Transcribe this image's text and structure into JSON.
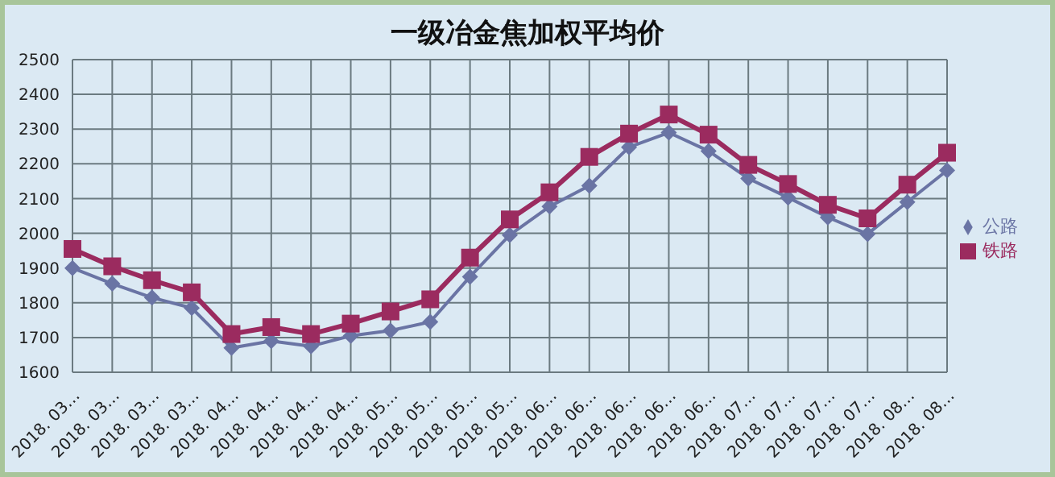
{
  "chart_data": {
    "type": "line",
    "title": "一级冶金焦加权平均价",
    "categories": [
      "2018. 03…",
      "2018. 03…",
      "2018. 03…",
      "2018. 03…",
      "2018. 04…",
      "2018. 04…",
      "2018. 04…",
      "2018. 04…",
      "2018. 05…",
      "2018. 05…",
      "2018. 05…",
      "2018. 05…",
      "2018. 06…",
      "2018. 06…",
      "2018. 06…",
      "2018. 06…",
      "2018. 06…",
      "2018. 07…",
      "2018. 07…",
      "2018. 07…",
      "2018. 07…",
      "2018. 08…",
      "2018. 08…"
    ],
    "series": [
      {
        "name": "公路",
        "color": "#6a74a4",
        "marker": "diamond",
        "values": [
          1900,
          1855,
          1815,
          1785,
          1670,
          1690,
          1675,
          1705,
          1720,
          1745,
          1875,
          1995,
          2077,
          2137,
          2248,
          2290,
          2237,
          2158,
          2103,
          2046,
          1998,
          2090,
          2181
        ]
      },
      {
        "name": "铁路",
        "color": "#9b2b5f",
        "marker": "square",
        "values": [
          1955,
          1905,
          1865,
          1830,
          1710,
          1730,
          1710,
          1740,
          1775,
          1810,
          1930,
          2040,
          2118,
          2220,
          2287,
          2342,
          2284,
          2197,
          2142,
          2082,
          2043,
          2140,
          2232
        ]
      }
    ],
    "ylim": [
      1600,
      2500
    ],
    "yticks": [
      1600,
      1700,
      1800,
      1900,
      2000,
      2100,
      2200,
      2300,
      2400,
      2500
    ],
    "grid": true,
    "legend": "right",
    "line_style": "solid"
  }
}
